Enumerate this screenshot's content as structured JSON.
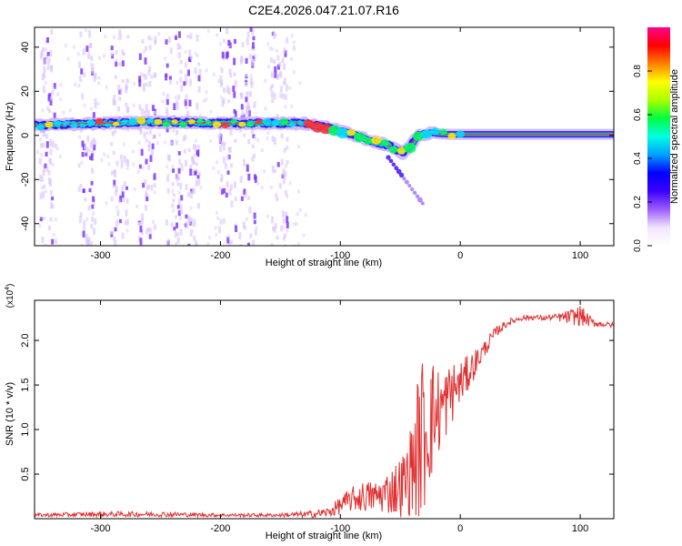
{
  "title": "C2E4.2026.047.21.07.R16",
  "chart_data": [
    {
      "type": "heatmap",
      "xlabel": "Height of straight line (km)",
      "ylabel": "Frequency (Hz)",
      "xlim": [
        -355,
        128
      ],
      "ylim": [
        -50,
        49
      ],
      "xticks": [
        -300,
        -200,
        -100,
        0,
        100
      ],
      "yticks": [
        -40,
        -20,
        0,
        20,
        40
      ],
      "colorbar": {
        "label": "Normalized spectral amplitude",
        "range": [
          0,
          1
        ],
        "ticks": [
          0.0,
          0.2,
          0.4,
          0.6,
          0.8
        ],
        "tick_labels": [
          "0.0",
          "0.2",
          "0.4",
          "0.6",
          "0.8"
        ],
        "colors": [
          "#ffffff",
          "#f1e5ff",
          "#9c5cff",
          "#3a00ff",
          "#0000ff",
          "#00a0ff",
          "#00ffe0",
          "#00ff40",
          "#aaff00",
          "#ffff00",
          "#ff8000",
          "#ff0000",
          "#ff0090"
        ]
      },
      "ridge": [
        {
          "x": -355,
          "y": 4.5
        },
        {
          "x": -300,
          "y": 5.5
        },
        {
          "x": -250,
          "y": 6.0
        },
        {
          "x": -200,
          "y": 5.5
        },
        {
          "x": -150,
          "y": 5.5
        },
        {
          "x": -130,
          "y": 5.5
        },
        {
          "x": -110,
          "y": 3.5
        },
        {
          "x": -90,
          "y": 0.5
        },
        {
          "x": -75,
          "y": -2.5
        },
        {
          "x": -60,
          "y": -4.5
        },
        {
          "x": -48,
          "y": -8.0
        },
        {
          "x": -42,
          "y": -5.0
        },
        {
          "x": -35,
          "y": 0.0
        },
        {
          "x": -25,
          "y": 1.0
        },
        {
          "x": -10,
          "y": 0.5
        },
        {
          "x": 10,
          "y": 0.5
        },
        {
          "x": 60,
          "y": 0.5
        },
        {
          "x": 128,
          "y": 0.5
        }
      ],
      "noise_bands_x": [
        -345,
        -312,
        -285,
        -262,
        -240,
        -225,
        -195,
        -178,
        -152
      ]
    },
    {
      "type": "line",
      "xlabel": "Height of straight line (km)",
      "ylabel": "SNR (10 * v/v)",
      "y_multiplier": "(x10",
      "y_multiplier_exp": "4",
      "y_multiplier_close": ")",
      "xlim": [
        -355,
        128
      ],
      "ylim": [
        0,
        2.45
      ],
      "xticks": [
        -300,
        -200,
        -100,
        0,
        100
      ],
      "yticks": [
        0.5,
        1.0,
        1.5,
        2.0
      ],
      "ytick_labels": [
        "0.5",
        "1.0",
        "1.5",
        "2.0"
      ],
      "line_color": "#e03030",
      "series": [
        {
          "x": [
            -355,
            -300,
            -250,
            -200,
            -150,
            -125,
            -110,
            -100,
            -90,
            -80,
            -70,
            -60,
            -50,
            -45,
            -40,
            -35,
            -30,
            -25,
            -20,
            -15,
            -10,
            -5,
            0,
            5,
            10,
            20,
            30,
            40,
            50,
            60,
            70,
            80,
            90,
            100,
            110,
            120,
            128
          ],
          "y": [
            0.04,
            0.05,
            0.05,
            0.04,
            0.04,
            0.05,
            0.07,
            0.15,
            0.22,
            0.25,
            0.25,
            0.3,
            0.36,
            0.42,
            0.6,
            0.8,
            1.0,
            1.12,
            1.18,
            1.25,
            1.35,
            1.45,
            1.52,
            1.6,
            1.7,
            1.9,
            2.1,
            2.2,
            2.25,
            2.26,
            2.25,
            2.26,
            2.26,
            2.28,
            2.2,
            2.18,
            2.17
          ],
          "spread": [
            0.02,
            0.03,
            0.03,
            0.02,
            0.02,
            0.04,
            0.06,
            0.1,
            0.14,
            0.18,
            0.18,
            0.25,
            0.35,
            0.4,
            0.55,
            0.85,
            0.95,
            0.75,
            0.55,
            0.45,
            0.4,
            0.32,
            0.25,
            0.22,
            0.18,
            0.1,
            0.06,
            0.04,
            0.03,
            0.03,
            0.03,
            0.04,
            0.08,
            0.12,
            0.05,
            0.03,
            0.03
          ]
        }
      ]
    }
  ]
}
